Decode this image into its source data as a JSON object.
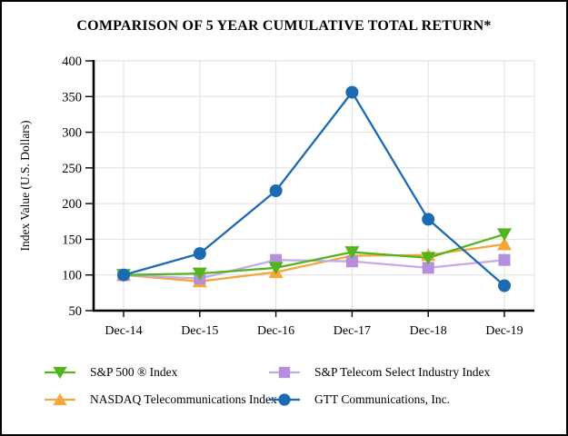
{
  "title": "COMPARISON OF 5 YEAR CUMULATIVE TOTAL RETURN*",
  "chart_data": {
    "type": "line",
    "categories": [
      "Dec-14",
      "Dec-15",
      "Dec-16",
      "Dec-17",
      "Dec-18",
      "Dec-19"
    ],
    "series": [
      {
        "name": "S&P 500 ® Index",
        "marker": "triangle-down",
        "color": "#52b51e",
        "values": [
          100,
          102,
          110,
          132,
          124,
          157
        ]
      },
      {
        "name": "S&P Telecom Select Industry Index",
        "marker": "square",
        "color": "#b48fdb",
        "line_color": "#c7abe8",
        "values": [
          100,
          95,
          121,
          119,
          110,
          121
        ]
      },
      {
        "name": "NASDAQ Telecommunications Index",
        "marker": "triangle-up",
        "color": "#f6a63a",
        "values": [
          100,
          91,
          104,
          127,
          128,
          143
        ]
      },
      {
        "name": "GTT Communications, Inc.",
        "marker": "circle",
        "color": "#1b6ab2",
        "values": [
          100,
          130,
          218,
          356,
          178,
          85
        ]
      }
    ],
    "ylabel": "Index Value (U.S. Dollars)",
    "xlabel": "",
    "ylim": [
      50,
      400
    ],
    "yticks": [
      50,
      100,
      150,
      200,
      250,
      300,
      350,
      400
    ],
    "grid": true,
    "legend_position": "bottom"
  },
  "colors": {
    "axis": "#000000",
    "grid": "#e4e4e4",
    "background": "#ffffff",
    "border": "#000000"
  }
}
